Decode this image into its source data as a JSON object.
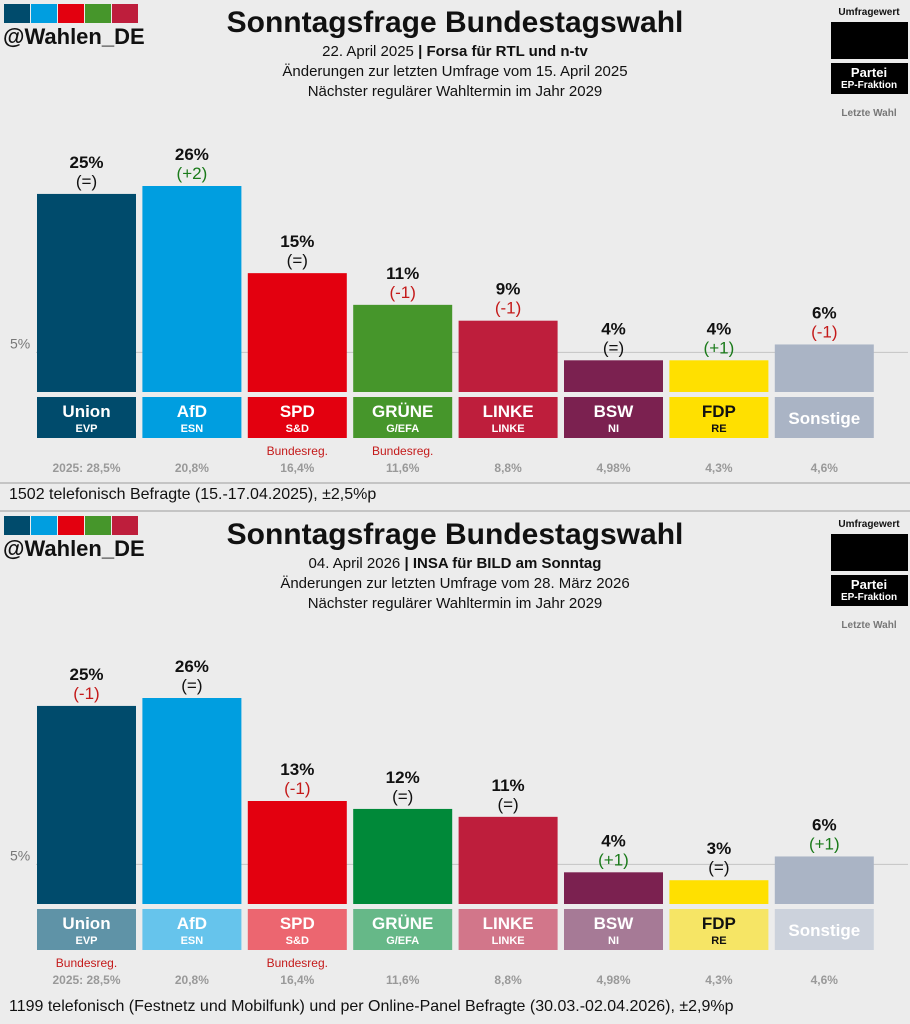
{
  "panels": [
    {
      "title": "Sonntagsfrage Bundestagswahl",
      "date": "22. April 2025",
      "pipe": "|",
      "institute": "Forsa für RTL und n-tv",
      "changes_line": "Änderungen zur letzten Umfrage vom 15. April 2025",
      "election_line": "Nächster regulärer Wahltermin im Jahr 2029",
      "footer": "1502 telefonisch Befragte (15.-17.04.2025), ±2,5%p",
      "chart_data": {
        "type": "bar",
        "categories": [
          "Union",
          "AfD",
          "SPD",
          "GRÜNE",
          "LINKE",
          "BSW",
          "FDP",
          "Sonstige"
        ],
        "groups": [
          "EVP",
          "ESN",
          "S&D",
          "G/EFA",
          "LINKE",
          "NI",
          "RE",
          ""
        ],
        "values": [
          25,
          26,
          15,
          11,
          9,
          4,
          4,
          6
        ],
        "value_labels": [
          "25%",
          "26%",
          "15%",
          "11%",
          "9%",
          "4%",
          "4%",
          "6%"
        ],
        "changes": [
          "(=)",
          "(+2)",
          "(=)",
          "(-1)",
          "(-1)",
          "(=)",
          "(+1)",
          "(-1)"
        ],
        "government": [
          "",
          "",
          "Bundesreg.",
          "Bundesreg.",
          "",
          "",
          "",
          ""
        ],
        "last_election": [
          "2025: 28,5%",
          "20,8%",
          "16,4%",
          "11,6%",
          "8,8%",
          "4,98%",
          "4,3%",
          "4,6%"
        ],
        "colors": [
          "#004b6c",
          "#009ee0",
          "#e3000f",
          "#46962b",
          "#be1e3c",
          "#7b2150",
          "#ffe000",
          "#aab4c5"
        ],
        "label_colors": [
          "#004b6c",
          "#009ee0",
          "#e3000f",
          "#46962b",
          "#be1e3c",
          "#7b2150",
          "#ffe000",
          "#aab4c5"
        ],
        "threshold_label": "5%",
        "threshold": 5,
        "ylim": [
          0,
          26
        ]
      }
    },
    {
      "title": "Sonntagsfrage Bundestagswahl",
      "date": "04. April 2026",
      "pipe": "|",
      "institute": "INSA für BILD am Sonntag",
      "changes_line": "Änderungen zur letzten Umfrage vom 28. März 2026",
      "election_line": "Nächster regulärer Wahltermin im Jahr 2029",
      "footer": "1199 telefonisch (Festnetz und Mobilfunk) und per Online-Panel Befragte (30.03.-02.04.2026), ±2,9%p",
      "chart_data": {
        "type": "bar",
        "categories": [
          "Union",
          "AfD",
          "SPD",
          "GRÜNE",
          "LINKE",
          "BSW",
          "FDP",
          "Sonstige"
        ],
        "groups": [
          "EVP",
          "ESN",
          "S&D",
          "G/EFA",
          "LINKE",
          "NI",
          "RE",
          ""
        ],
        "values": [
          25,
          26,
          13,
          12,
          11,
          4,
          3,
          6
        ],
        "value_labels": [
          "25%",
          "26%",
          "13%",
          "12%",
          "11%",
          "4%",
          "3%",
          "6%"
        ],
        "changes": [
          "(-1)",
          "(=)",
          "(-1)",
          "(=)",
          "(=)",
          "(+1)",
          "(=)",
          "(+1)"
        ],
        "government": [
          "Bundesreg.",
          "",
          "Bundesreg.",
          "",
          "",
          "",
          "",
          ""
        ],
        "last_election": [
          "2025: 28,5%",
          "20,8%",
          "16,4%",
          "11,6%",
          "8,8%",
          "4,98%",
          "4,3%",
          "4,6%"
        ],
        "colors": [
          "#004b6c",
          "#009ee0",
          "#e3000f",
          "#008939",
          "#be1e3c",
          "#7b2150",
          "#ffe000",
          "#aab4c5"
        ],
        "label_colors": [
          "#5f93a7",
          "#66c4ec",
          "#ec6670",
          "#66b888",
          "#d2768a",
          "#a67a96",
          "#f6e565",
          "#ccd2dc"
        ],
        "threshold_label": "5%",
        "threshold": 5,
        "ylim": [
          0,
          26
        ]
      }
    }
  ],
  "brand": {
    "handle": "@Wahlen_DE",
    "logo_colors": [
      "#004b6c",
      "#009ee0",
      "#e3000f",
      "#46962b",
      "#be1e3c"
    ]
  },
  "legend": {
    "poll_value": "Umfragewert",
    "party": "Partei",
    "ep_group": "EP-Fraktion",
    "last_election": "Letzte Wahl"
  },
  "change_colors": {
    "positive": "#1a7a1a",
    "negative": "#c41a1a",
    "neutral": "#111111"
  }
}
